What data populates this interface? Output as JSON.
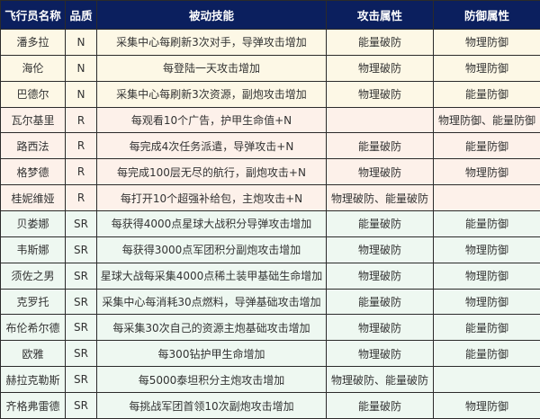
{
  "headers": [
    "飞行员名称",
    "品质",
    "被动技能",
    "攻击属性",
    "防御属性"
  ],
  "colors": {
    "header_bg": "#0b1f5e",
    "N_row_bg": "#fdf8e6",
    "R_row_bg": "#fdf1ea",
    "SR_row_bg": "#eef8f1"
  },
  "rows": [
    {
      "name": "潘多拉",
      "quality": "N",
      "skill": "采集中心每刷新3次对手，导弹攻击增加",
      "attack": "能量破防",
      "defense": "物理防御"
    },
    {
      "name": "海伦",
      "quality": "N",
      "skill": "每登陆一天攻击增加",
      "attack": "物理破防",
      "defense": "物理防御"
    },
    {
      "name": "巴德尔",
      "quality": "N",
      "skill": "采集中心每刷新3次资源，副炮攻击增加",
      "attack": "物理破防",
      "defense": "能量防御"
    },
    {
      "name": "瓦尔基里",
      "quality": "R",
      "skill": "每观看10个广告，护甲生命值+N",
      "attack": "",
      "defense": "物理防御、能量防御"
    },
    {
      "name": "路西法",
      "quality": "R",
      "skill": "每完成4次任务派遣，导弹攻击+N",
      "attack": "能量破防",
      "defense": "能量防御"
    },
    {
      "name": "格梦德",
      "quality": "R",
      "skill": "每完成100层无尽的航行，副炮攻击+N",
      "attack": "物理破防",
      "defense": "物理防御"
    },
    {
      "name": "桂妮维娅",
      "quality": "R",
      "skill": "每打开10个超强补给包，主炮攻击+N",
      "attack": "物理破防、能量破防",
      "defense": ""
    },
    {
      "name": "贝娄娜",
      "quality": "SR",
      "skill": "每获得4000点星球大战积分导弹攻击增加",
      "attack": "能量破防",
      "defense": "能量防御"
    },
    {
      "name": "韦斯娜",
      "quality": "SR",
      "skill": "每获得3000点军团积分副炮攻击增加",
      "attack": "物理破防",
      "defense": "物理防御"
    },
    {
      "name": "须佐之男",
      "quality": "SR",
      "skill": "星球大战每采集4000点稀土装甲基础生命增加",
      "attack": "物理破防",
      "defense": "物理防御"
    },
    {
      "name": "克罗托",
      "quality": "SR",
      "skill": "采集中心每消耗30点燃料，导弹基础攻击增加",
      "attack": "能量破防",
      "defense": "物理防御"
    },
    {
      "name": "布伦希尔德",
      "quality": "SR",
      "skill": "每采集30次自己的资源主炮基础攻击增加",
      "attack": "物理破防",
      "defense": "能量防御"
    },
    {
      "name": "欧雅",
      "quality": "SR",
      "skill": "每300钻护甲生命增加",
      "attack": "物理破防",
      "defense": "能量防御"
    },
    {
      "name": "赫拉克勒斯",
      "quality": "SR",
      "skill": "每5000泰坦积分主炮攻击增加",
      "attack": "物理破防、能量破防",
      "defense": ""
    },
    {
      "name": "齐格弗雷德",
      "quality": "SR",
      "skill": "每挑战军团首领10次副炮攻击增加",
      "attack": "能量破防",
      "defense": "物理防御"
    }
  ]
}
